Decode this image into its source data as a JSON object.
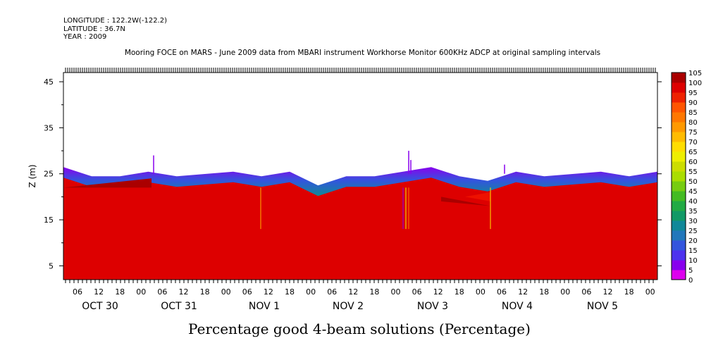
{
  "header": {
    "longitude": "LONGITUDE : 122.2W(-122.2)",
    "latitude": "LATITUDE : 36.7N",
    "year": "YEAR : 2009"
  },
  "plot_title": "Mooring FOCE on MARS - June 2009 data from MBARI instrument Workhorse Monitor 600KHz ADCP at original sampling intervals",
  "bottom_title": "Percentage good 4-beam solutions (Percentage)",
  "chart_data": {
    "type": "heatmap",
    "title": "Mooring FOCE on MARS - June 2009 data from MBARI instrument Workhorse Monitor 600KHz ADCP at original sampling intervals",
    "xlabel": "",
    "ylabel": "Z (m)",
    "colorbar_label": "Percentage good 4-beam solutions (Percentage)",
    "y_ticks": [
      5,
      15,
      25,
      35,
      45
    ],
    "ylim": [
      2,
      47
    ],
    "x_hour_ticks": [
      "06",
      "12",
      "18",
      "00",
      "06",
      "12",
      "18",
      "00",
      "06",
      "12",
      "18",
      "00",
      "06",
      "12",
      "18",
      "00",
      "06",
      "12",
      "18",
      "00",
      "06",
      "12",
      "18",
      "00",
      "06",
      "12",
      "18",
      "00"
    ],
    "x_day_labels": [
      "OCT 30",
      "OCT 31",
      "NOV  1",
      "NOV  2",
      "NOV  3",
      "NOV  4",
      "NOV  5"
    ],
    "colorbar": {
      "levels": [
        0,
        5,
        10,
        15,
        20,
        25,
        30,
        35,
        40,
        45,
        50,
        55,
        60,
        65,
        70,
        75,
        80,
        85,
        90,
        95,
        100,
        105
      ],
      "labels": [
        "105",
        "100",
        "95",
        "90",
        "85",
        "80",
        "75",
        "70",
        "65",
        "60",
        "55",
        "50",
        "45",
        "40",
        "35",
        "30",
        "25",
        "20",
        "15",
        "10",
        "5",
        "0"
      ],
      "colors": [
        "#dd00ee",
        "#8800ee",
        "#4d33ee",
        "#3355dd",
        "#2277bb",
        "#118899",
        "#119966",
        "#22aa44",
        "#44bb22",
        "#77cc11",
        "#aadd00",
        "#ccdd00",
        "#eeee00",
        "#ffdd00",
        "#ffbb00",
        "#ff9900",
        "#ff7700",
        "#ff5500",
        "#ee2200",
        "#dd0000",
        "#aa0000"
      ]
    },
    "surface_depth_m": [
      26,
      24,
      24,
      25,
      24,
      24.5,
      25,
      24,
      25,
      22,
      24,
      24,
      25,
      26,
      24,
      23,
      25,
      24,
      24.5,
      25,
      24,
      25
    ],
    "dominant_value": 100
  }
}
